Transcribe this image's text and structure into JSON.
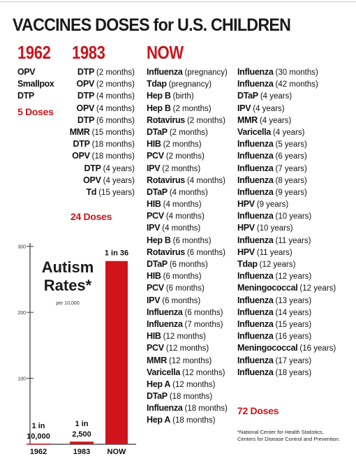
{
  "title": "VACCINES DOSES for U.S. CHILDREN",
  "columns": {
    "y1962": {
      "header": "1962",
      "items": [
        {
          "name": "OPV",
          "age": ""
        },
        {
          "name": "Smallpox",
          "age": ""
        },
        {
          "name": "DTP",
          "age": ""
        }
      ],
      "total": "5 Doses"
    },
    "y1983": {
      "header": "1983",
      "items": [
        {
          "name": "DTP",
          "age": "(2 months)"
        },
        {
          "name": "OPV",
          "age": "(2 months)"
        },
        {
          "name": "DTP",
          "age": "(4 months)"
        },
        {
          "name": "OPV",
          "age": "(4 months)"
        },
        {
          "name": "DTP",
          "age": "(6 months)"
        },
        {
          "name": "MMR",
          "age": "(15 months)"
        },
        {
          "name": "DTP",
          "age": "(18 months)"
        },
        {
          "name": "OPV",
          "age": "(18 months)"
        },
        {
          "name": "DTP",
          "age": "(4 years)"
        },
        {
          "name": "OPV",
          "age": "(4 years)"
        },
        {
          "name": "Td",
          "age": "(15 years)"
        }
      ],
      "total": "24 Doses"
    },
    "now": {
      "header": "NOW",
      "items_left": [
        {
          "name": "Influenza",
          "age": "(pregnancy)"
        },
        {
          "name": "Tdap",
          "age": "(pregnancy)"
        },
        {
          "name": "Hep B",
          "age": "(birth)"
        },
        {
          "name": "Hep B",
          "age": "(2 months)"
        },
        {
          "name": "Rotavirus",
          "age": "(2 months)"
        },
        {
          "name": "DTaP",
          "age": "(2 months)"
        },
        {
          "name": "HIB",
          "age": "(2 months)"
        },
        {
          "name": "PCV",
          "age": "(2 months)"
        },
        {
          "name": "IPV",
          "age": "(2 months)"
        },
        {
          "name": "Rotavirus",
          "age": "(4 months)"
        },
        {
          "name": "DTaP",
          "age": "(4 months)"
        },
        {
          "name": "HIB",
          "age": "(4 months)"
        },
        {
          "name": "PCV",
          "age": "(4 months)"
        },
        {
          "name": "IPV",
          "age": "(4 months)"
        },
        {
          "name": "Hep B",
          "age": "(6 months)"
        },
        {
          "name": "Rotavirus",
          "age": "(6 months)"
        },
        {
          "name": "DTaP",
          "age": "(6 months)"
        },
        {
          "name": "HIB",
          "age": "(6 months)"
        },
        {
          "name": "PCV",
          "age": "(6 months)"
        },
        {
          "name": "IPV",
          "age": "(6 months)"
        },
        {
          "name": "Influenza",
          "age": "(6 months)"
        },
        {
          "name": "Influenza",
          "age": "(7 months)"
        },
        {
          "name": "HIB",
          "age": "(12 months)"
        },
        {
          "name": "PCV",
          "age": "(12 months)"
        },
        {
          "name": "MMR",
          "age": "(12 months)"
        },
        {
          "name": "Varicella",
          "age": "(12 months)"
        },
        {
          "name": "Hep A",
          "age": "(12 months)"
        },
        {
          "name": "DTaP",
          "age": "(18 months)"
        },
        {
          "name": "Influenza",
          "age": "(18 months)"
        },
        {
          "name": "Hep A",
          "age": "(18 months)"
        }
      ],
      "items_right": [
        {
          "name": "Influenza",
          "age": "(30 months)"
        },
        {
          "name": "Influenza",
          "age": "(42 months)"
        },
        {
          "name": "DTaP",
          "age": "(4 years)"
        },
        {
          "name": "IPV",
          "age": "(4 years)"
        },
        {
          "name": "MMR",
          "age": "(4 years)"
        },
        {
          "name": "Varicella",
          "age": "(4 years)"
        },
        {
          "name": "Influenza",
          "age": "(5 years)"
        },
        {
          "name": "Influenza",
          "age": "(6 years)"
        },
        {
          "name": "Influenza",
          "age": "(7 years)"
        },
        {
          "name": "Influenza",
          "age": "(8 years)"
        },
        {
          "name": "Influenza",
          "age": "(9 years)"
        },
        {
          "name": "HPV",
          "age": "(9 years)"
        },
        {
          "name": "Influenza",
          "age": "(10 years)"
        },
        {
          "name": "HPV",
          "age": "(10 years)"
        },
        {
          "name": "Influenza",
          "age": "(11 years)"
        },
        {
          "name": "HPV",
          "age": "(11 years)"
        },
        {
          "name": "Tdap",
          "age": "(12 years)"
        },
        {
          "name": "Influenza",
          "age": "(12 years)"
        },
        {
          "name": "Meningococcal",
          "age": "(12 years)"
        },
        {
          "name": "Influenza",
          "age": "(13 years)"
        },
        {
          "name": "Influenza",
          "age": "(14 years)"
        },
        {
          "name": "Influenza",
          "age": "(15 years)"
        },
        {
          "name": "Influenza",
          "age": "(16 years)"
        },
        {
          "name": "Meningococcal",
          "age": "(16 years)"
        },
        {
          "name": "Influenza",
          "age": "(17 years)"
        },
        {
          "name": "Influenza",
          "age": "(18 years)"
        }
      ],
      "total": "72 Doses"
    }
  },
  "chart_data": {
    "type": "bar",
    "title": "Autism Rates*",
    "subtitle": "per 10,000",
    "categories": [
      "1962",
      "1983",
      "NOW"
    ],
    "values": [
      1,
      4,
      277.8
    ],
    "bar_labels": [
      "1 in 10,000",
      "1 in 2,500",
      "1 in 36"
    ],
    "yticks": [
      100,
      200,
      300
    ],
    "ylim": [
      0,
      305
    ],
    "bar_color": "#d0141c",
    "grid": false
  },
  "footnote": "*National Center for Health Statistics, Centers for Disease Control and Prevention.",
  "colors": {
    "accent": "#c8161d",
    "text": "#1a1a1a"
  }
}
